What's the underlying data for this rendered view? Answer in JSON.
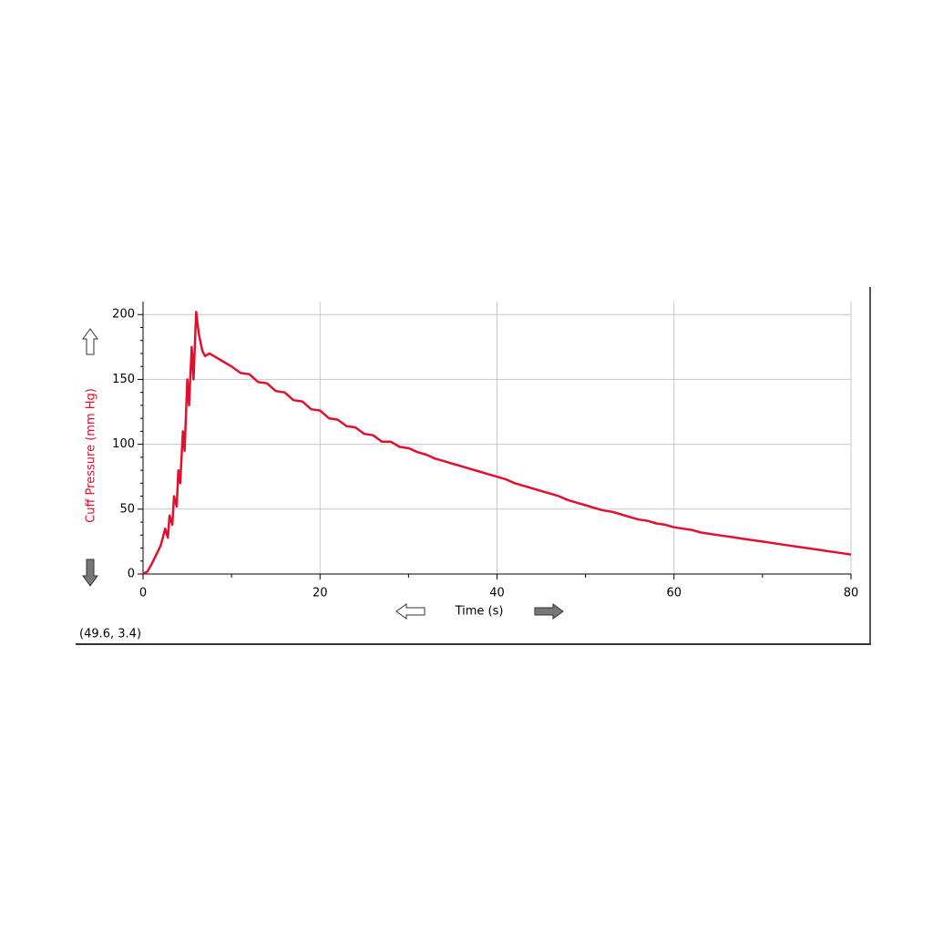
{
  "chart_data": {
    "type": "line",
    "x_label": "Time (s)",
    "y_label": "Cuff Pressure (mm Hg)",
    "status": "(49.6, 3.4)",
    "color": "#e0102f",
    "label_color": "#e0102f",
    "x": [
      0,
      0.5,
      1,
      1.5,
      2,
      2.5,
      2.8,
      3,
      3.3,
      3.5,
      3.8,
      4,
      4.2,
      4.5,
      4.7,
      5,
      5.2,
      5.5,
      5.7,
      6,
      6.3,
      6.7,
      7,
      7.5,
      8,
      9,
      10,
      11,
      12,
      13,
      14,
      15,
      16,
      17,
      18,
      19,
      20,
      21,
      22,
      23,
      24,
      25,
      26,
      27,
      28,
      29,
      30,
      31,
      32,
      33,
      34,
      35,
      36,
      37,
      38,
      39,
      40,
      41,
      42,
      43,
      44,
      45,
      46,
      47,
      48,
      49,
      50,
      51,
      52,
      53,
      54,
      55,
      56,
      57,
      58,
      59,
      60,
      61,
      62,
      63,
      64,
      65,
      66,
      67,
      68,
      69,
      70,
      71,
      72,
      73,
      74,
      75,
      76,
      77,
      78,
      79,
      80
    ],
    "values": [
      0,
      2,
      8,
      15,
      22,
      35,
      28,
      45,
      38,
      60,
      52,
      80,
      70,
      110,
      95,
      150,
      130,
      175,
      150,
      202,
      185,
      172,
      168,
      170,
      168,
      164,
      160,
      155,
      154,
      148,
      147,
      141,
      140,
      134,
      133,
      127,
      126,
      120,
      119,
      114,
      113,
      108,
      107,
      102,
      102,
      98,
      97,
      94,
      92,
      89,
      87,
      85,
      83,
      81,
      79,
      77,
      75,
      73,
      70,
      68,
      66,
      64,
      62,
      60,
      57,
      55,
      53,
      51,
      49,
      48,
      46,
      44,
      42,
      41,
      39,
      38,
      36,
      35,
      34,
      32,
      31,
      30,
      29,
      28,
      27,
      26,
      25,
      24,
      23,
      22,
      21,
      20,
      19,
      18,
      17,
      16,
      15
    ],
    "xlim": [
      0,
      80
    ],
    "ylim": [
      0,
      210
    ],
    "xticks": [
      0,
      20,
      40,
      60,
      80
    ],
    "yticks": [
      0,
      50,
      100,
      150,
      200
    ],
    "grid": true
  }
}
